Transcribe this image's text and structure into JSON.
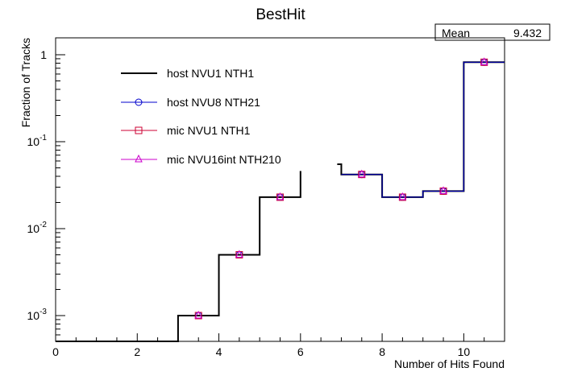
{
  "chart_data": {
    "type": "line",
    "title": "BestHit",
    "xlabel": "Number of Hits Found",
    "ylabel": "Fraction of Tracks",
    "xlim": [
      0,
      11
    ],
    "ylim": [
      0.0005,
      1.6
    ],
    "yscale": "log",
    "x_ticks": [
      0,
      2,
      4,
      6,
      8,
      10
    ],
    "y_ticks": [
      {
        "value": 0.001,
        "base": "10",
        "exp": "-3"
      },
      {
        "value": 0.01,
        "base": "10",
        "exp": "-2"
      },
      {
        "value": 0.1,
        "base": "10",
        "exp": "-1"
      },
      {
        "value": 1,
        "base": "1",
        "exp": ""
      }
    ],
    "grid": false,
    "legend_placement": "top-left",
    "stats_box": {
      "label": "Mean",
      "value": "9.432"
    },
    "bin_edges": [
      0,
      1,
      2,
      3,
      4,
      5,
      6,
      7,
      8,
      9,
      10,
      11
    ],
    "series": [
      {
        "name": "host NVU1 NTH1",
        "style": "histogram",
        "color": "#000000",
        "marker": "none",
        "values": [
          0.0005,
          0.0005,
          0.0005,
          0.001,
          0.005,
          0.023,
          0.046,
          0.042,
          0.023,
          0.027,
          0.82
        ],
        "note_values": [
          null,
          null,
          null,
          null,
          null,
          null,
          null,
          null,
          null,
          null,
          null
        ]
      },
      {
        "name": "host NVU8 NTH21",
        "style": "markers",
        "color": "#0000cc",
        "marker": "circle",
        "values": [
          null,
          null,
          null,
          0.001,
          0.005,
          0.023,
          null,
          0.042,
          0.023,
          0.027,
          0.82
        ]
      },
      {
        "name": "mic NVU1 NTH1",
        "style": "markers",
        "color": "#cc0033",
        "marker": "square",
        "values": [
          null,
          null,
          null,
          0.001,
          0.005,
          0.023,
          null,
          0.042,
          0.023,
          0.027,
          0.82
        ]
      },
      {
        "name": "mic NVU16int NTH210",
        "style": "markers",
        "color": "#cc00cc",
        "marker": "triangle",
        "values": [
          null,
          null,
          null,
          0.001,
          0.005,
          0.023,
          null,
          0.042,
          0.023,
          0.027,
          0.82
        ]
      }
    ],
    "gap_segment": {
      "x_start": 6.9,
      "x_end": 7,
      "value": 0.055
    }
  }
}
